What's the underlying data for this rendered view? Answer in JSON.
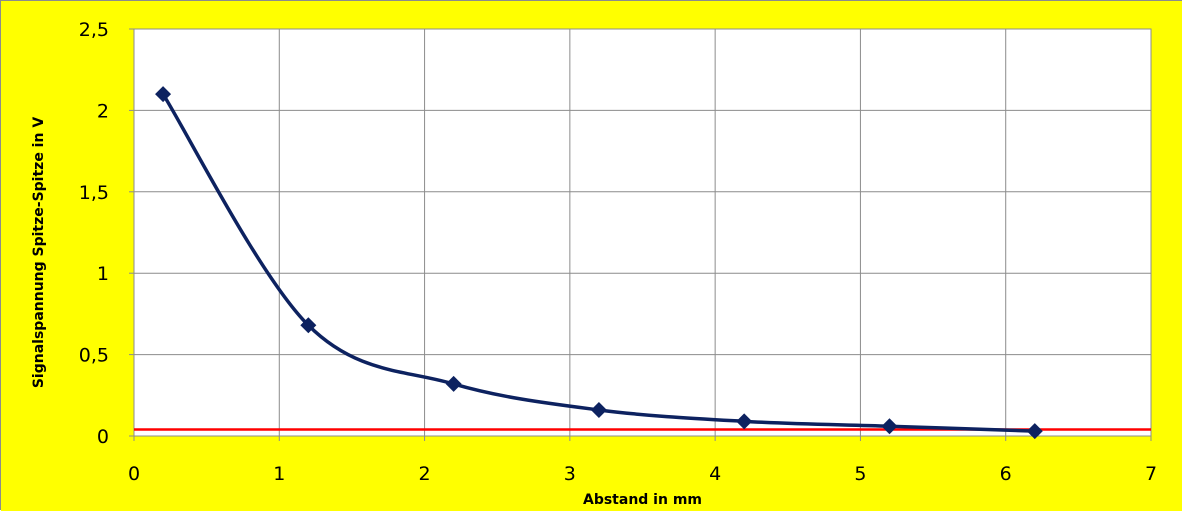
{
  "chart_data": {
    "type": "line",
    "title": "",
    "xlabel": "Abstand in mm",
    "ylabel": "Signalspannung Spitze-Spitze in V",
    "xlim": [
      0,
      7
    ],
    "ylim": [
      0,
      2.5
    ],
    "x_ticks": [
      0,
      1,
      2,
      3,
      4,
      5,
      6,
      7
    ],
    "x_tick_labels": [
      "0",
      "1",
      "2",
      "3",
      "4",
      "5",
      "6",
      "7"
    ],
    "y_ticks": [
      0,
      0.5,
      1,
      1.5,
      2,
      2.5
    ],
    "y_tick_labels": [
      "0",
      "0,5",
      "1",
      "1,5",
      "2",
      "2,5"
    ],
    "grid": true,
    "smoothed": true,
    "series": [
      {
        "x": [
          0.2,
          1.2,
          2.2,
          3.2,
          4.2,
          5.2,
          6.2
        ],
        "values": [
          2.1,
          0.68,
          0.32,
          0.16,
          0.09,
          0.06,
          0.03
        ],
        "color": "#0d2260",
        "marker": "diamond"
      }
    ],
    "reference_lines": [
      {
        "y": 0.04,
        "color": "#ff0000"
      }
    ],
    "colors": {
      "background": "#ffff00",
      "plot_area": "#ffffff",
      "grid": "#8c8c8c"
    }
  }
}
